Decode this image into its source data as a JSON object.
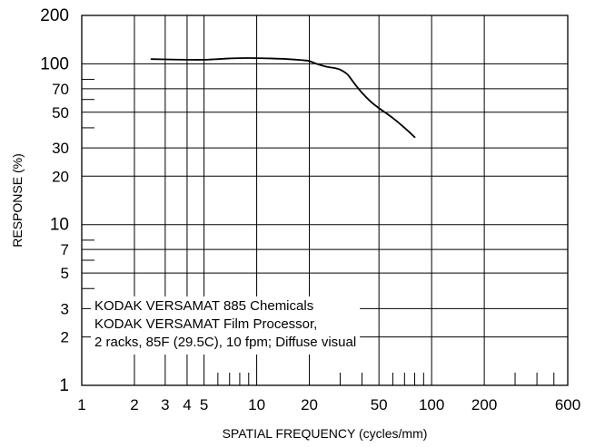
{
  "chart_data": {
    "type": "line",
    "title": "",
    "xlabel": "SPATIAL FREQUENCY (cycles/mm)",
    "ylabel": "RESPONSE (%)",
    "xscale": "log",
    "yscale": "log",
    "xlim": [
      1,
      600
    ],
    "ylim": [
      1,
      200
    ],
    "grid": true,
    "x_ticks": [
      {
        "value": 1,
        "label": "1"
      },
      {
        "value": 2,
        "label": "2"
      },
      {
        "value": 3,
        "label": "3"
      },
      {
        "value": 4,
        "label": "4"
      },
      {
        "value": 5,
        "label": "5"
      },
      {
        "value": 10,
        "label": "10"
      },
      {
        "value": 20,
        "label": "20"
      },
      {
        "value": 50,
        "label": "50"
      },
      {
        "value": 100,
        "label": "100"
      },
      {
        "value": 200,
        "label": "200"
      },
      {
        "value": 600,
        "label": "600"
      }
    ],
    "x_gridlines": [
      2,
      3,
      4,
      5,
      10,
      20,
      50,
      100,
      200
    ],
    "x_minor_ticks": [
      6,
      7,
      8,
      9,
      30,
      40,
      60,
      70,
      80,
      90,
      300,
      400,
      500
    ],
    "y_ticks": [
      {
        "value": 1,
        "label": "1"
      },
      {
        "value": 2,
        "label": "2"
      },
      {
        "value": 3,
        "label": "3"
      },
      {
        "value": 5,
        "label": "5"
      },
      {
        "value": 7,
        "label": "7"
      },
      {
        "value": 10,
        "label": "10"
      },
      {
        "value": 20,
        "label": "20"
      },
      {
        "value": 30,
        "label": "30"
      },
      {
        "value": 50,
        "label": "50"
      },
      {
        "value": 70,
        "label": "70"
      },
      {
        "value": 100,
        "label": "100"
      },
      {
        "value": 200,
        "label": "200"
      }
    ],
    "y_gridlines": [
      2,
      3,
      5,
      7,
      10,
      20,
      30,
      50,
      70,
      100
    ],
    "y_minor_ticks": [
      4,
      6,
      8,
      40,
      60,
      80
    ],
    "annotation": [
      "KODAK VERSAMAT 885 Chemicals",
      "KODAK VERSAMAT Film Processor,",
      "2 racks, 85F (29.5C), 10 fpm; Diffuse visual"
    ],
    "series": [
      {
        "name": "",
        "color": "#000000",
        "x": [
          2.5,
          3,
          4,
          5,
          6,
          7,
          8,
          10,
          12,
          15,
          18,
          20,
          22,
          25,
          28,
          30,
          33,
          36,
          40,
          45,
          50,
          60,
          70,
          80
        ],
        "y": [
          107,
          106.5,
          106,
          106,
          107,
          108,
          108.5,
          108.5,
          108,
          107,
          105.5,
          104,
          100,
          96,
          94,
          92,
          86,
          76,
          66,
          58,
          53,
          46,
          40,
          35
        ]
      }
    ]
  }
}
